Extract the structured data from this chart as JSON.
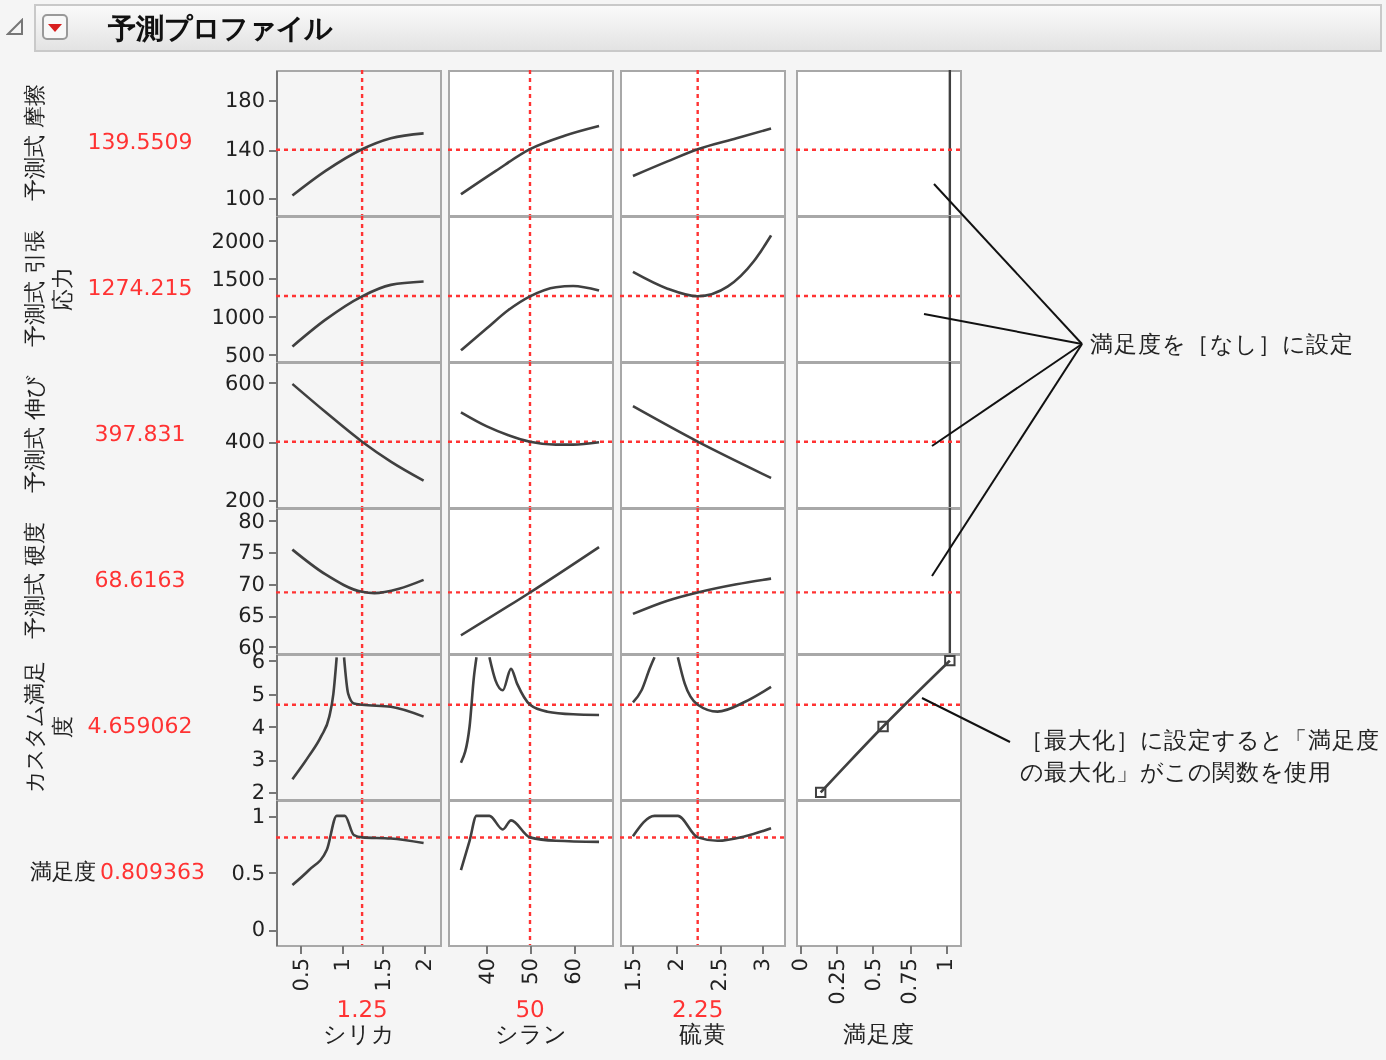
{
  "chart_data": [
    {
      "type": "line",
      "title": "予測プロファイル",
      "ylabel": "予測式 摩擦",
      "tick_labels": "y",
      "xlim": [
        0.2,
        2.2
      ],
      "xticks": [
        0.5,
        1,
        1.5,
        2
      ],
      "ylim": [
        86,
        205
      ],
      "yticks": [
        100,
        140,
        180
      ],
      "color": "#404040",
      "x": [
        0.4,
        0.8,
        1.25,
        1.6,
        2.0
      ],
      "values": [
        102,
        122,
        140,
        149,
        153
      ],
      "ref_lines": [
        {
          "axis": "x",
          "value": 1.25,
          "color": "#ff3333",
          "line_style": "dotted"
        },
        {
          "axis": "y",
          "value": 139.5509,
          "label": "139.5509",
          "color": "#ff3333",
          "line_style": "dotted"
        }
      ]
    },
    {
      "type": "line",
      "tick_labels": false,
      "xlim": [
        31,
        69
      ],
      "xticks": [
        40,
        50,
        60
      ],
      "ylim": [
        86,
        205
      ],
      "yticks": [
        100,
        140,
        180
      ],
      "color": "#404040",
      "x": [
        34,
        42,
        50,
        58,
        66
      ],
      "values": [
        103,
        122,
        140,
        151,
        159
      ],
      "ref_lines": [
        {
          "axis": "x",
          "value": 50,
          "color": "#ff3333",
          "line_style": "dotted"
        },
        {
          "axis": "y",
          "value": 139.5509,
          "color": "#ff3333",
          "line_style": "dotted"
        }
      ]
    },
    {
      "type": "line",
      "tick_labels": false,
      "xlim": [
        1.35,
        3.25
      ],
      "xticks": [
        1.5,
        2,
        2.5,
        3
      ],
      "ylim": [
        86,
        205
      ],
      "yticks": [
        100,
        140,
        180
      ],
      "color": "#404040",
      "x": [
        1.5,
        1.9,
        2.25,
        2.7,
        3.1
      ],
      "values": [
        118,
        130,
        140,
        149,
        157
      ],
      "ref_lines": [
        {
          "axis": "x",
          "value": 2.25,
          "color": "#ff3333",
          "line_style": "dotted"
        },
        {
          "axis": "y",
          "value": 139.5509,
          "color": "#ff3333",
          "line_style": "dotted"
        }
      ]
    },
    {
      "type": "line",
      "tick_labels": false,
      "xlim": [
        -0.03,
        1.1
      ],
      "xticks": [
        0,
        0.25,
        0.5,
        0.75,
        1
      ],
      "ylim": [
        86,
        205
      ],
      "yticks": [
        100,
        140,
        180
      ],
      "annotations": [
        "満足度を［なし］に設定"
      ],
      "ref_lines": [
        {
          "axis": "x",
          "value": 1.03,
          "color": "#404040",
          "line_style": "solid"
        },
        {
          "axis": "y",
          "value": 139.5509,
          "color": "#ff3333",
          "line_style": "dotted"
        }
      ]
    },
    {
      "type": "line",
      "ylabel": "予測式 引張応力",
      "tick_labels": "y",
      "xlim": [
        0.2,
        2.2
      ],
      "xticks": [
        0.5,
        1,
        1.5,
        2
      ],
      "ylim": [
        420,
        2325
      ],
      "yticks": [
        500,
        1000,
        1500,
        2000
      ],
      "color": "#404040",
      "x": [
        0.4,
        0.8,
        1.25,
        1.6,
        2.0
      ],
      "values": [
        610,
        960,
        1270,
        1420,
        1465
      ],
      "ref_lines": [
        {
          "axis": "x",
          "value": 1.25,
          "color": "#ff3333",
          "line_style": "dotted"
        },
        {
          "axis": "y",
          "value": 1274.215,
          "label": "1274.215",
          "color": "#ff3333",
          "line_style": "dotted"
        }
      ]
    },
    {
      "type": "line",
      "tick_labels": false,
      "xlim": [
        31,
        69
      ],
      "xticks": [
        40,
        50,
        60
      ],
      "ylim": [
        420,
        2325
      ],
      "yticks": [
        500,
        1000,
        1500,
        2000
      ],
      "color": "#404040",
      "x": [
        34,
        40,
        45,
        50,
        56,
        60,
        66
      ],
      "values": [
        560,
        850,
        1090,
        1270,
        1390,
        1405,
        1345
      ],
      "ref_lines": [
        {
          "axis": "x",
          "value": 50,
          "color": "#ff3333",
          "line_style": "dotted"
        },
        {
          "axis": "y",
          "value": 1274.215,
          "color": "#ff3333",
          "line_style": "dotted"
        }
      ]
    },
    {
      "type": "line",
      "tick_labels": false,
      "xlim": [
        1.35,
        3.25
      ],
      "xticks": [
        1.5,
        2,
        2.5,
        3
      ],
      "ylim": [
        420,
        2325
      ],
      "yticks": [
        500,
        1000,
        1500,
        2000
      ],
      "color": "#404040",
      "x": [
        1.5,
        1.9,
        2.25,
        2.6,
        2.9,
        3.1
      ],
      "values": [
        1590,
        1370,
        1270,
        1400,
        1730,
        2070
      ],
      "ref_lines": [
        {
          "axis": "x",
          "value": 2.25,
          "color": "#ff3333",
          "line_style": "dotted"
        },
        {
          "axis": "y",
          "value": 1274.215,
          "color": "#ff3333",
          "line_style": "dotted"
        }
      ]
    },
    {
      "type": "line",
      "tick_labels": false,
      "xlim": [
        -0.03,
        1.1
      ],
      "xticks": [
        0,
        0.25,
        0.5,
        0.75,
        1
      ],
      "ylim": [
        420,
        2325
      ],
      "yticks": [
        500,
        1000,
        1500,
        2000
      ],
      "ref_lines": [
        {
          "axis": "x",
          "value": 1.03,
          "color": "#404040",
          "line_style": "solid"
        },
        {
          "axis": "y",
          "value": 1274.215,
          "color": "#ff3333",
          "line_style": "dotted"
        }
      ]
    },
    {
      "type": "line",
      "ylabel": "予測式 伸び",
      "tick_labels": "y",
      "xlim": [
        0.2,
        2.2
      ],
      "xticks": [
        0.5,
        1,
        1.5,
        2
      ],
      "ylim": [
        175,
        670
      ],
      "yticks": [
        200,
        400,
        600
      ],
      "color": "#404040",
      "x": [
        0.4,
        0.8,
        1.25,
        1.6,
        2.0
      ],
      "values": [
        595,
        500,
        398,
        330,
        265
      ],
      "ref_lines": [
        {
          "axis": "x",
          "value": 1.25,
          "color": "#ff3333",
          "line_style": "dotted"
        },
        {
          "axis": "y",
          "value": 397.831,
          "label": "397.831",
          "color": "#ff3333",
          "line_style": "dotted"
        }
      ]
    },
    {
      "type": "line",
      "tick_labels": false,
      "xlim": [
        31,
        69
      ],
      "xticks": [
        40,
        50,
        60
      ],
      "ylim": [
        175,
        670
      ],
      "yticks": [
        200,
        400,
        600
      ],
      "color": "#404040",
      "x": [
        34,
        40,
        45,
        50,
        56,
        60,
        66
      ],
      "values": [
        498,
        450,
        420,
        398,
        388,
        388,
        396
      ],
      "ref_lines": [
        {
          "axis": "x",
          "value": 50,
          "color": "#ff3333",
          "line_style": "dotted"
        },
        {
          "axis": "y",
          "value": 397.831,
          "color": "#ff3333",
          "line_style": "dotted"
        }
      ]
    },
    {
      "type": "line",
      "tick_labels": false,
      "xlim": [
        1.35,
        3.25
      ],
      "xticks": [
        1.5,
        2,
        2.5,
        3
      ],
      "ylim": [
        175,
        670
      ],
      "yticks": [
        200,
        400,
        600
      ],
      "color": "#404040",
      "x": [
        1.5,
        2.25,
        3.1
      ],
      "values": [
        519,
        398,
        274
      ],
      "ref_lines": [
        {
          "axis": "x",
          "value": 2.25,
          "color": "#ff3333",
          "line_style": "dotted"
        },
        {
          "axis": "y",
          "value": 397.831,
          "color": "#ff3333",
          "line_style": "dotted"
        }
      ]
    },
    {
      "type": "line",
      "tick_labels": false,
      "xlim": [
        -0.03,
        1.1
      ],
      "xticks": [
        0,
        0.25,
        0.5,
        0.75,
        1
      ],
      "ylim": [
        175,
        670
      ],
      "yticks": [
        200,
        400,
        600
      ],
      "ref_lines": [
        {
          "axis": "x",
          "value": 1.03,
          "color": "#404040",
          "line_style": "solid"
        },
        {
          "axis": "y",
          "value": 397.831,
          "color": "#ff3333",
          "line_style": "dotted"
        }
      ]
    },
    {
      "type": "line",
      "ylabel": "予測式 硬度",
      "tick_labels": "y",
      "xlim": [
        0.2,
        2.2
      ],
      "xticks": [
        0.5,
        1,
        1.5,
        2
      ],
      "ylim": [
        59,
        82
      ],
      "yticks": [
        60,
        65,
        70,
        75,
        80
      ],
      "color": "#404040",
      "x": [
        0.4,
        0.8,
        1.25,
        1.4,
        1.7,
        2.0
      ],
      "values": [
        75.4,
        71.5,
        68.7,
        68.5,
        69.2,
        70.6
      ],
      "ref_lines": [
        {
          "axis": "x",
          "value": 1.25,
          "color": "#ff3333",
          "line_style": "dotted"
        },
        {
          "axis": "y",
          "value": 68.6163,
          "label": "68.6163",
          "color": "#ff3333",
          "line_style": "dotted"
        }
      ]
    },
    {
      "type": "line",
      "tick_labels": false,
      "xlim": [
        31,
        69
      ],
      "xticks": [
        40,
        50,
        60
      ],
      "ylim": [
        59,
        82
      ],
      "yticks": [
        60,
        65,
        70,
        75,
        80
      ],
      "color": "#404040",
      "x": [
        34,
        50,
        66
      ],
      "values": [
        61.8,
        68.6,
        75.8
      ],
      "ref_lines": [
        {
          "axis": "x",
          "value": 50,
          "color": "#ff3333",
          "line_style": "dotted"
        },
        {
          "axis": "y",
          "value": 68.6163,
          "color": "#ff3333",
          "line_style": "dotted"
        }
      ]
    },
    {
      "type": "line",
      "tick_labels": false,
      "xlim": [
        1.35,
        3.25
      ],
      "xticks": [
        1.5,
        2,
        2.5,
        3
      ],
      "ylim": [
        59,
        82
      ],
      "yticks": [
        60,
        65,
        70,
        75,
        80
      ],
      "color": "#404040",
      "x": [
        1.5,
        1.9,
        2.25,
        2.7,
        3.1
      ],
      "values": [
        65.2,
        67.3,
        68.6,
        69.9,
        70.8
      ],
      "ref_lines": [
        {
          "axis": "x",
          "value": 2.25,
          "color": "#ff3333",
          "line_style": "dotted"
        },
        {
          "axis": "y",
          "value": 68.6163,
          "color": "#ff3333",
          "line_style": "dotted"
        }
      ]
    },
    {
      "type": "line",
      "tick_labels": false,
      "xlim": [
        -0.03,
        1.1
      ],
      "xticks": [
        0,
        0.25,
        0.5,
        0.75,
        1
      ],
      "ylim": [
        59,
        82
      ],
      "yticks": [
        60,
        65,
        70,
        75,
        80
      ],
      "ref_lines": [
        {
          "axis": "x",
          "value": 1.03,
          "color": "#404040",
          "line_style": "solid"
        },
        {
          "axis": "y",
          "value": 68.6163,
          "color": "#ff3333",
          "line_style": "dotted"
        }
      ]
    },
    {
      "type": "line",
      "ylabel": "カスタム満足度",
      "tick_labels": "y",
      "xlim": [
        0.2,
        2.2
      ],
      "xticks": [
        0.5,
        1,
        1.5,
        2
      ],
      "ylim": [
        1.8,
        6.2
      ],
      "yticks": [
        2,
        3,
        4,
        5,
        6
      ],
      "color": "#404040",
      "x": [
        0.4,
        0.6,
        0.75,
        0.85,
        0.9,
        0.94,
        1.0,
        1.03,
        1.08,
        1.15,
        1.25,
        1.6,
        2.0
      ],
      "values": [
        2.4,
        3.1,
        3.7,
        4.3,
        5.0,
        6.1,
        null,
        6.1,
        5.0,
        4.7,
        4.66,
        4.6,
        4.3
      ],
      "ref_lines": [
        {
          "axis": "x",
          "value": 1.25,
          "color": "#ff3333",
          "line_style": "dotted"
        },
        {
          "axis": "y",
          "value": 4.659062,
          "label": "4.659062",
          "color": "#ff3333",
          "line_style": "dotted"
        }
      ]
    },
    {
      "type": "line",
      "tick_labels": false,
      "xlim": [
        31,
        69
      ],
      "xticks": [
        40,
        50,
        60
      ],
      "ylim": [
        1.8,
        6.2
      ],
      "yticks": [
        2,
        3,
        4,
        5,
        6
      ],
      "color": "#404040",
      "x": [
        34,
        36,
        37,
        37.6,
        39,
        40.6,
        42,
        43.7,
        45.6,
        47,
        50,
        54,
        60,
        66
      ],
      "values": [
        2.9,
        4.0,
        5.5,
        6.1,
        null,
        6.1,
        5.4,
        5.1,
        5.75,
        5.3,
        4.66,
        4.45,
        4.37,
        4.35
      ],
      "ref_lines": [
        {
          "axis": "x",
          "value": 50,
          "color": "#ff3333",
          "line_style": "dotted"
        },
        {
          "axis": "y",
          "value": 4.659062,
          "color": "#ff3333",
          "line_style": "dotted"
        }
      ]
    },
    {
      "type": "line",
      "tick_labels": false,
      "xlim": [
        1.35,
        3.25
      ],
      "xticks": [
        1.5,
        2,
        2.5,
        3
      ],
      "ylim": [
        1.8,
        6.2
      ],
      "yticks": [
        2,
        3,
        4,
        5,
        6
      ],
      "color": "#404040",
      "x": [
        1.5,
        1.6,
        1.7,
        1.75,
        1.9,
        2.02,
        2.1,
        2.25,
        2.48,
        2.8,
        3.1
      ],
      "values": [
        4.73,
        5.1,
        5.8,
        6.1,
        null,
        6.1,
        5.3,
        4.66,
        4.45,
        4.75,
        5.2
      ],
      "ref_lines": [
        {
          "axis": "x",
          "value": 2.25,
          "color": "#ff3333",
          "line_style": "dotted"
        },
        {
          "axis": "y",
          "value": 4.659062,
          "color": "#ff3333",
          "line_style": "dotted"
        }
      ]
    },
    {
      "type": "line",
      "tick_labels": false,
      "marker": "square",
      "xlim": [
        -0.03,
        1.1
      ],
      "xticks": [
        0,
        0.25,
        0.5,
        0.75,
        1
      ],
      "ylim": [
        1.8,
        6.2
      ],
      "yticks": [
        2,
        3,
        4,
        5,
        6
      ],
      "color": "#404040",
      "x": [
        0.14,
        0.57,
        1.03
      ],
      "values": [
        2,
        4,
        6
      ],
      "annotations": [
        "［最大化］に設定すると「満足度の最大化」がこの関数を使用"
      ],
      "ref_lines": [
        {
          "axis": "y",
          "value": 4.659062,
          "color": "#ff3333",
          "line_style": "dotted"
        }
      ]
    },
    {
      "type": "line",
      "ylabel": "満足度",
      "xlabel": "シリカ",
      "xlim": [
        0.2,
        2.2
      ],
      "xticks": [
        0.5,
        1,
        1.5,
        2
      ],
      "ylim": [
        -0.14,
        1.14
      ],
      "yticks": [
        0,
        0.5,
        1
      ],
      "color": "#404040",
      "x": [
        0.4,
        0.6,
        0.82,
        0.94,
        1.04,
        1.15,
        1.25,
        1.6,
        2.0
      ],
      "values": [
        0.39,
        0.52,
        0.7,
        1.0,
        1.0,
        0.83,
        0.81,
        0.8,
        0.76
      ],
      "ref_lines": [
        {
          "axis": "x",
          "value": 1.25,
          "label": "1.25",
          "color": "#ff3333",
          "line_style": "dotted"
        },
        {
          "axis": "y",
          "value": 0.809363,
          "label": "0.809363",
          "color": "#ff3333",
          "line_style": "dotted"
        }
      ]
    },
    {
      "type": "line",
      "xlabel": "シラン",
      "tick_labels": "x",
      "xlim": [
        31,
        69
      ],
      "xticks": [
        40,
        50,
        60
      ],
      "ylim": [
        -0.14,
        1.14
      ],
      "yticks": [
        0,
        0.5,
        1
      ],
      "color": "#404040",
      "x": [
        34,
        36,
        37.6,
        40.6,
        43.7,
        45.6,
        50,
        56,
        66
      ],
      "values": [
        0.52,
        0.78,
        1.0,
        1.0,
        0.88,
        0.96,
        0.81,
        0.78,
        0.77
      ],
      "ref_lines": [
        {
          "axis": "x",
          "value": 50,
          "label": "50",
          "color": "#ff3333",
          "line_style": "dotted"
        },
        {
          "axis": "y",
          "value": 0.809363,
          "color": "#ff3333",
          "line_style": "dotted"
        }
      ]
    },
    {
      "type": "line",
      "xlabel": "硫黄",
      "tick_labels": "x",
      "xlim": [
        1.35,
        3.25
      ],
      "xticks": [
        1.5,
        2,
        2.5,
        3
      ],
      "ylim": [
        -0.14,
        1.14
      ],
      "yticks": [
        0,
        0.5,
        1
      ],
      "color": "#404040",
      "x": [
        1.5,
        1.75,
        2.02,
        2.25,
        2.48,
        2.8,
        3.1
      ],
      "values": [
        0.82,
        1.0,
        1.0,
        0.81,
        0.78,
        0.82,
        0.89
      ],
      "ref_lines": [
        {
          "axis": "x",
          "value": 2.25,
          "label": "2.25",
          "color": "#ff3333",
          "line_style": "dotted"
        },
        {
          "axis": "y",
          "value": 0.809363,
          "color": "#ff3333",
          "line_style": "dotted"
        }
      ]
    },
    {
      "type": "line",
      "xlabel": "満足度",
      "tick_labels": "x",
      "xlim": [
        -0.03,
        1.1
      ],
      "xticks": [
        0,
        0.25,
        0.5,
        0.75,
        1
      ],
      "ylim": [
        -0.14,
        1.14
      ]
    }
  ]
}
